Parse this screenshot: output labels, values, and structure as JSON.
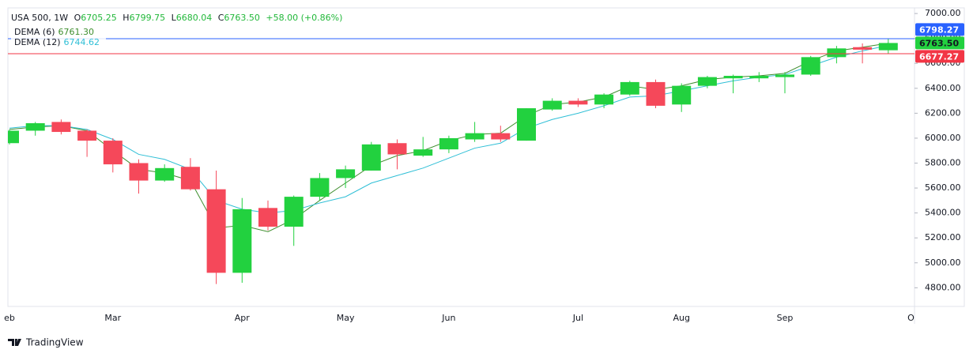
{
  "chart_data": {
    "type": "candlestick",
    "legend": {
      "symbol": "USA 500, 1W",
      "ohlc_keys": [
        "O",
        "H",
        "L",
        "C"
      ],
      "close_label": "6763.50",
      "change": "+58.00 (+0.86%)"
    },
    "categories": [
      "eb",
      null,
      null,
      null,
      "Mar",
      null,
      null,
      null,
      null,
      "Apr",
      null,
      null,
      null,
      "May",
      null,
      null,
      null,
      "Jun",
      null,
      null,
      null,
      null,
      "Jul",
      null,
      null,
      null,
      "Aug",
      null,
      null,
      null,
      "Sep",
      null,
      null,
      null,
      null,
      "O"
    ],
    "open": [
      5960,
      6060,
      6130,
      6060,
      5980,
      5800,
      5660,
      5770,
      5590,
      4920,
      5440,
      5290,
      5530,
      5680,
      5740,
      5960,
      5860,
      5910,
      5990,
      6040,
      5980,
      6230,
      6300,
      6270,
      6350,
      6450,
      6270,
      6420,
      6480,
      6480,
      6490,
      6510,
      6650,
      6730,
      6705.25,
      null
    ],
    "high": [
      6070,
      6130,
      6150,
      6070,
      6000,
      5830,
      5790,
      5840,
      5740,
      5520,
      5500,
      5540,
      5720,
      5780,
      5970,
      5990,
      6010,
      6020,
      6130,
      6100,
      6240,
      6320,
      6320,
      6360,
      6460,
      6470,
      6440,
      6500,
      6510,
      6530,
      6530,
      6660,
      6740,
      6760,
      6799.75,
      null
    ],
    "low": [
      5950,
      6020,
      6030,
      5850,
      5725,
      5555,
      5650,
      5580,
      4830,
      4840,
      5260,
      5136,
      5500,
      5600,
      5740,
      5750,
      5850,
      5880,
      5970,
      5970,
      5980,
      6220,
      6250,
      6240,
      6340,
      6240,
      6210,
      6400,
      6360,
      6450,
      6360,
      6500,
      6600,
      6600,
      6680.04,
      null
    ],
    "close": [
      6060,
      6120,
      6050,
      5980,
      5790,
      5660,
      5760,
      5590,
      4920,
      5430,
      5290,
      5530,
      5680,
      5750,
      5950,
      5870,
      5910,
      6000,
      6040,
      5990,
      6240,
      6300,
      6270,
      6350,
      6450,
      6260,
      6420,
      6490,
      6500,
      6500,
      6510,
      6650,
      6720,
      6710,
      6763.5,
      null
    ],
    "up_color": "#22d13f",
    "down_color": "#f5485a",
    "series": [
      {
        "name": "DEMA (6)",
        "color": "#3f8f2f",
        "values": [
          6070,
          6090,
          6100,
          6060,
          5900,
          5750,
          5720,
          5660,
          5280,
          5300,
          5250,
          5350,
          5500,
          5640,
          5780,
          5860,
          5900,
          5980,
          6030,
          6040,
          6180,
          6270,
          6290,
          6330,
          6420,
          6390,
          6420,
          6470,
          6490,
          6500,
          6520,
          6620,
          6700,
          6730,
          6761.3,
          null
        ],
        "value_labels": [
          null,
          null,
          null,
          null,
          null,
          null,
          null,
          null,
          null,
          null,
          null,
          null,
          null,
          null,
          null,
          null,
          null,
          null,
          null,
          null,
          null,
          null,
          null,
          null,
          null,
          null,
          null,
          null,
          null,
          null,
          null,
          null,
          null,
          null,
          "6761.30",
          null
        ]
      },
      {
        "name": "DEMA (12)",
        "color": "#2fbfd6",
        "values": [
          6080,
          6100,
          6100,
          6070,
          5990,
          5870,
          5830,
          5750,
          5500,
          5430,
          5400,
          5420,
          5480,
          5530,
          5640,
          5700,
          5760,
          5840,
          5920,
          5960,
          6080,
          6150,
          6200,
          6260,
          6330,
          6340,
          6380,
          6420,
          6460,
          6490,
          6510,
          6580,
          6650,
          6700,
          6744.62,
          null
        ],
        "value_labels": [
          null,
          null,
          null,
          null,
          null,
          null,
          null,
          null,
          null,
          null,
          null,
          null,
          null,
          null,
          null,
          null,
          null,
          null,
          null,
          null,
          null,
          null,
          null,
          null,
          null,
          null,
          null,
          null,
          null,
          null,
          null,
          null,
          null,
          null,
          "6744.62",
          null
        ]
      }
    ],
    "price_lines": [
      {
        "value": 6798.27,
        "label": "6798.27",
        "color": "#2962ff"
      },
      {
        "value": 6677.27,
        "label": "6677.27",
        "color": "#f23645"
      }
    ],
    "ylim": [
      4650,
      7045
    ],
    "yticks": [
      {
        "value": 4800,
        "label": "4800.00"
      },
      {
        "value": 5000,
        "label": "5000.00"
      },
      {
        "value": 5200,
        "label": "5200.00"
      },
      {
        "value": 5400,
        "label": "5400.00"
      },
      {
        "value": 5600,
        "label": "5600.00"
      },
      {
        "value": 5800,
        "label": "5800.00"
      },
      {
        "value": 6000,
        "label": "6000.00"
      },
      {
        "value": 6200,
        "label": "6200.00"
      },
      {
        "value": 6400,
        "label": "6400.00"
      },
      {
        "value": 6600,
        "label": "6600.00"
      },
      {
        "value": 6800,
        "label": "6800.00"
      },
      {
        "value": 7000,
        "label": "7000.00"
      }
    ],
    "brand": "TradingView"
  }
}
